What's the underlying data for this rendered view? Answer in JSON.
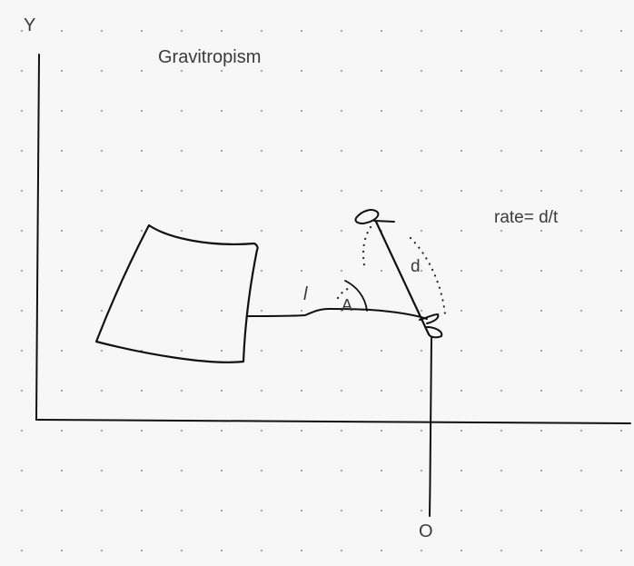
{
  "texts": {
    "y_axis": "Y",
    "title": "Gravitropism",
    "rate_formula": "rate= d/t",
    "d_label": "d",
    "l_label": "l",
    "angle_label": "A",
    "o_label": "O"
  },
  "colors": {
    "background": "#f7f7f8",
    "ink": "#111111",
    "text": "#3b3b3b",
    "grid_dot": "#9a9aa0"
  }
}
